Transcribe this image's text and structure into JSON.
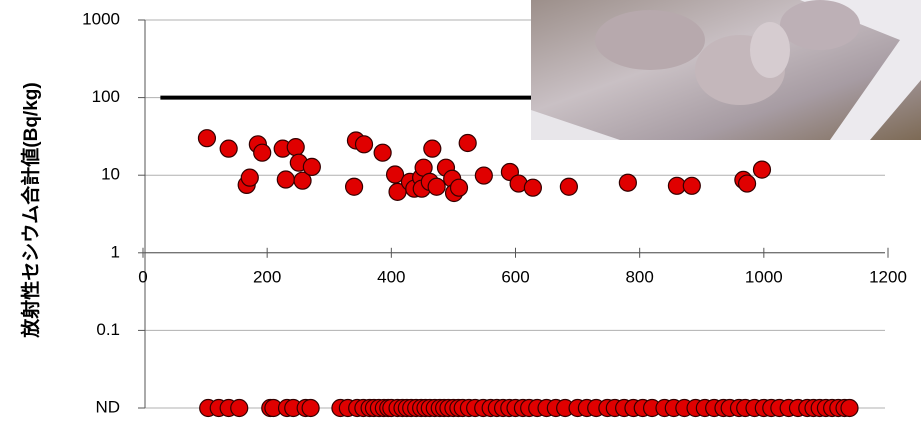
{
  "chart_data": {
    "type": "scatter",
    "y_label": "放射性セシウム合計値(Bq/kg)",
    "log_y": true,
    "grid": true,
    "xlim": [
      0,
      1200
    ],
    "xticks": [
      0,
      200,
      400,
      600,
      800,
      1000,
      1200
    ],
    "ylim": [
      0.01,
      1000
    ],
    "yticks": [
      1000,
      100,
      10,
      1,
      0.1,
      {
        "value": 0.01,
        "label": "ND"
      }
    ],
    "reference_line": {
      "x": [
        28,
        1200
      ],
      "values": [
        100,
        100
      ],
      "color": "#000000"
    },
    "series": [
      {
        "color": "#e00000",
        "x": [
          103,
          138,
          167,
          172,
          185,
          192,
          225,
          230,
          246,
          251,
          257,
          272,
          340,
          343,
          356,
          386,
          406,
          410,
          430,
          437,
          448,
          449,
          452,
          466,
          462,
          473,
          488,
          498,
          501,
          509,
          523,
          549,
          591,
          605,
          628,
          686,
          781,
          860,
          884,
          967,
          973,
          997
        ],
        "values": [
          30,
          22,
          7.5,
          9.3,
          25,
          19.5,
          22,
          8.8,
          23,
          14.5,
          8.5,
          12.8,
          7.1,
          28,
          25,
          19.5,
          10.2,
          6.1,
          8.2,
          6.7,
          9.3,
          6.7,
          12.5,
          22,
          8.2,
          7.1,
          12.5,
          9,
          5.9,
          6.9,
          26,
          9.9,
          11,
          7.8,
          6.9,
          7.1,
          8,
          7.3,
          7.3,
          8.7,
          7.8,
          11.8
        ]
      },
      {
        "color": "#e00000",
        "x": [
          105,
          122,
          138,
          155,
          205,
          210,
          232,
          242,
          262,
          270,
          318,
          330,
          345,
          355,
          365,
          372,
          380,
          388,
          395,
          400,
          410,
          418,
          425,
          432,
          440,
          448,
          455,
          462,
          470,
          478,
          485,
          492,
          500,
          508,
          515,
          525,
          535,
          548,
          560,
          570,
          580,
          590,
          600,
          612,
          622,
          635,
          650,
          665,
          680,
          700,
          715,
          730,
          748,
          760,
          775,
          790,
          805,
          820,
          840,
          855,
          872,
          890,
          905,
          920,
          935,
          945,
          960,
          970,
          985,
          1000,
          1012,
          1025,
          1040,
          1055,
          1070,
          1080,
          1090,
          1100,
          1110,
          1120,
          1130,
          1138
        ],
        "values": [
          0.01,
          0.01,
          0.01,
          0.01,
          0.01,
          0.01,
          0.01,
          0.01,
          0.01,
          0.01,
          0.01,
          0.01,
          0.01,
          0.01,
          0.01,
          0.01,
          0.01,
          0.01,
          0.01,
          0.01,
          0.01,
          0.01,
          0.01,
          0.01,
          0.01,
          0.01,
          0.01,
          0.01,
          0.01,
          0.01,
          0.01,
          0.01,
          0.01,
          0.01,
          0.01,
          0.01,
          0.01,
          0.01,
          0.01,
          0.01,
          0.01,
          0.01,
          0.01,
          0.01,
          0.01,
          0.01,
          0.01,
          0.01,
          0.01,
          0.01,
          0.01,
          0.01,
          0.01,
          0.01,
          0.01,
          0.01,
          0.01,
          0.01,
          0.01,
          0.01,
          0.01,
          0.01,
          0.01,
          0.01,
          0.01,
          0.01,
          0.01,
          0.01,
          0.01,
          0.01,
          0.01,
          0.01,
          0.01,
          0.01,
          0.01,
          0.01,
          0.01,
          0.01,
          0.01,
          0.01,
          0.01,
          0.01
        ]
      }
    ]
  }
}
